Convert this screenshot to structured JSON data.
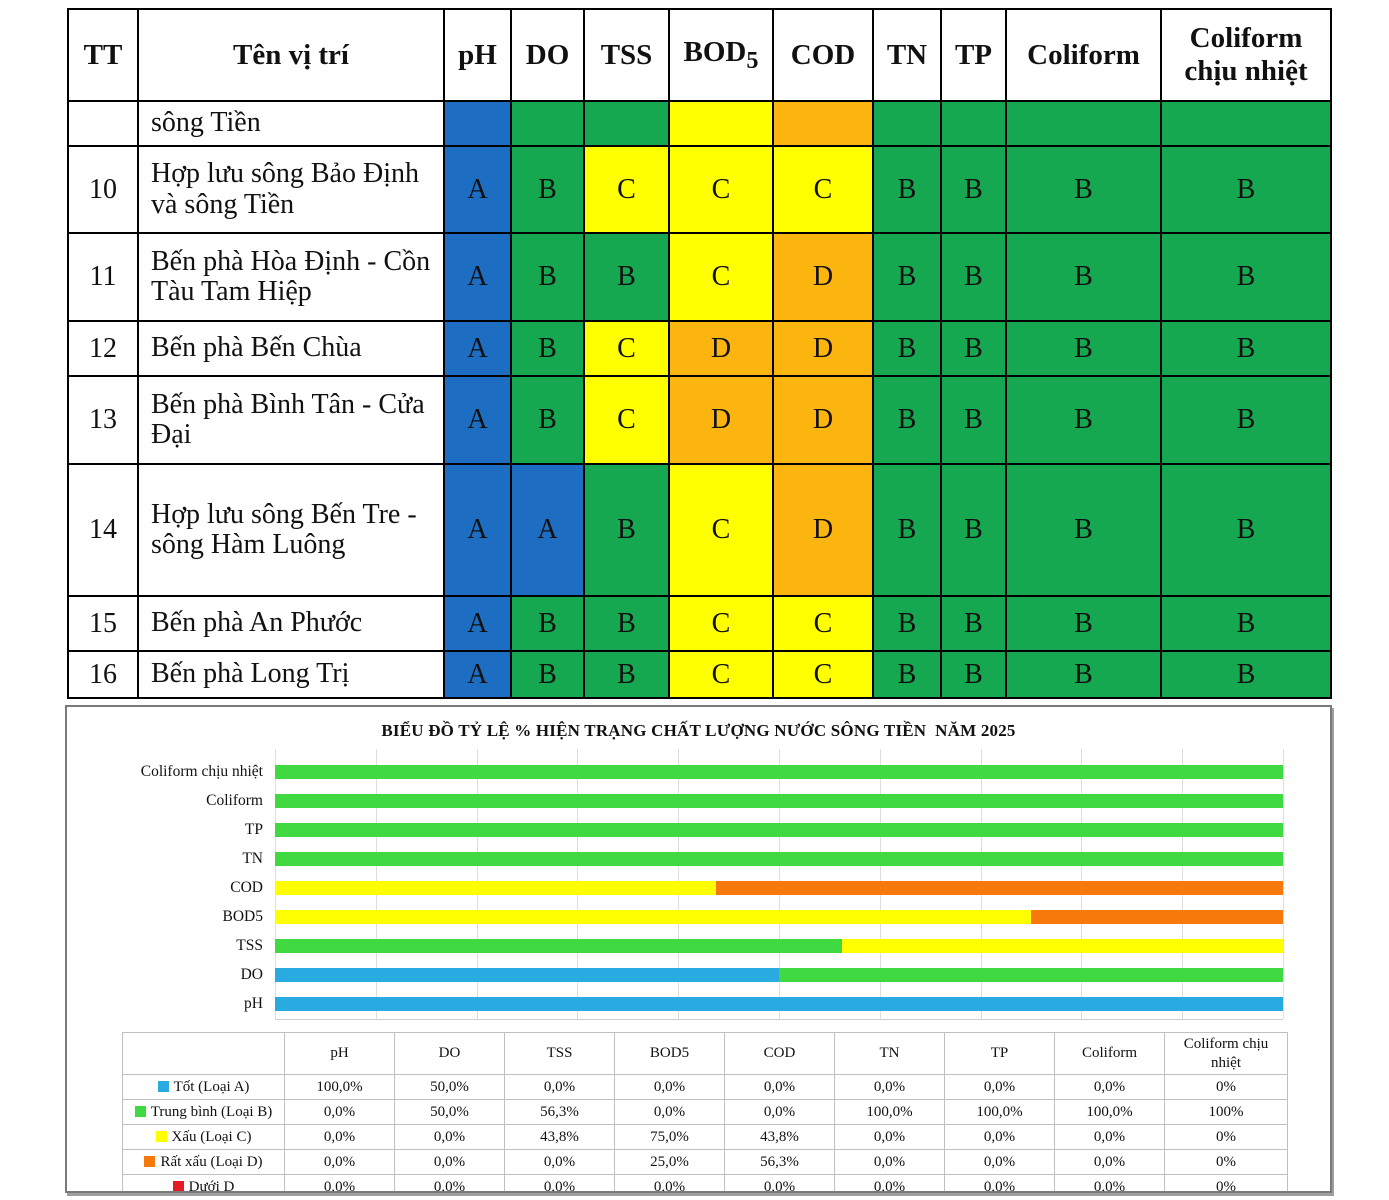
{
  "colors": {
    "table_grades": {
      "A": "#1d6ec2",
      "B": "#16a751",
      "C": "#ffff00",
      "D": "#fcb40e"
    },
    "grid_line": "#dedede",
    "figure_border": "#7a7a7a"
  },
  "table": {
    "headers": [
      {
        "key": "tt",
        "label": "TT",
        "sub": ""
      },
      {
        "key": "location",
        "label": "Tên vị trí",
        "sub": ""
      },
      {
        "key": "ph",
        "label": "pH",
        "sub": ""
      },
      {
        "key": "do",
        "label": "DO",
        "sub": ""
      },
      {
        "key": "tss",
        "label": "TSS",
        "sub": ""
      },
      {
        "key": "bod5",
        "label": "BOD",
        "sub": "5"
      },
      {
        "key": "cod",
        "label": "COD",
        "sub": ""
      },
      {
        "key": "tn",
        "label": "TN",
        "sub": ""
      },
      {
        "key": "tp",
        "label": "TP",
        "sub": ""
      },
      {
        "key": "coliform",
        "label": "Coliform",
        "sub": ""
      },
      {
        "key": "coliform-chiu-nhiet",
        "label": "Coliform chịu nhiệt",
        "sub": ""
      }
    ],
    "rows": [
      {
        "tt": "",
        "name": "sông Tiền",
        "show_letters": false,
        "grades": [
          "A",
          "B",
          "B",
          "C",
          "D",
          "B",
          "B",
          "B",
          "B"
        ]
      },
      {
        "tt": "10",
        "name": "Hợp lưu sông Bảo Định và sông Tiền",
        "show_letters": true,
        "grades": [
          "A",
          "B",
          "C",
          "C",
          "C",
          "B",
          "B",
          "B",
          "B"
        ]
      },
      {
        "tt": "11",
        "name": "Bến phà Hòa Định - Cồn Tàu Tam Hiệp",
        "show_letters": true,
        "grades": [
          "A",
          "B",
          "B",
          "C",
          "D",
          "B",
          "B",
          "B",
          "B"
        ]
      },
      {
        "tt": "12",
        "name": "Bến phà Bến Chùa",
        "show_letters": true,
        "grades": [
          "A",
          "B",
          "C",
          "D",
          "D",
          "B",
          "B",
          "B",
          "B"
        ]
      },
      {
        "tt": "13",
        "name": "Bến phà Bình Tân - Cửa Đại",
        "show_letters": true,
        "grades": [
          "A",
          "B",
          "C",
          "D",
          "D",
          "B",
          "B",
          "B",
          "B"
        ]
      },
      {
        "tt": "14",
        "name": "Hợp lưu sông Bến Tre - sông Hàm Luông",
        "show_letters": true,
        "grades": [
          "A",
          "A",
          "B",
          "C",
          "D",
          "B",
          "B",
          "B",
          "B"
        ]
      },
      {
        "tt": "15",
        "name": "Bến phà An Phước",
        "show_letters": true,
        "grades": [
          "A",
          "B",
          "B",
          "C",
          "C",
          "B",
          "B",
          "B",
          "B"
        ]
      },
      {
        "tt": "16",
        "name": "Bến phà Long Trị",
        "show_letters": true,
        "grades": [
          "A",
          "B",
          "B",
          "C",
          "C",
          "B",
          "B",
          "B",
          "B"
        ]
      }
    ]
  },
  "chart": {
    "title": "BIỂU ĐỒ TỶ LỆ % HIỆN TRẠNG CHẤT LƯỢNG NƯỚC SÔNG TIỀN  NĂM 2025"
  },
  "chart_data": [
    {
      "type": "table",
      "title": "Water quality classification by monitoring site (grades A best … D worst)",
      "columns": [
        "TT",
        "Tên vị trí",
        "pH",
        "DO",
        "TSS",
        "BOD5",
        "COD",
        "TN",
        "TP",
        "Coliform",
        "Coliform chịu nhiệt"
      ],
      "rows": [
        [
          "",
          "sông Tiền",
          "A",
          "B",
          "B",
          "C",
          "D",
          "B",
          "B",
          "B",
          "B"
        ],
        [
          "10",
          "Hợp lưu sông Bảo Định và sông Tiền",
          "A",
          "B",
          "C",
          "C",
          "C",
          "B",
          "B",
          "B",
          "B"
        ],
        [
          "11",
          "Bến phà Hòa Định - Cồn Tàu Tam Hiệp",
          "A",
          "B",
          "B",
          "C",
          "D",
          "B",
          "B",
          "B",
          "B"
        ],
        [
          "12",
          "Bến phà Bến Chùa",
          "A",
          "B",
          "C",
          "D",
          "D",
          "B",
          "B",
          "B",
          "B"
        ],
        [
          "13",
          "Bến phà Bình Tân - Cửa Đại",
          "A",
          "B",
          "C",
          "D",
          "D",
          "B",
          "B",
          "B",
          "B"
        ],
        [
          "14",
          "Hợp lưu sông Bến Tre - sông Hàm Luông",
          "A",
          "A",
          "B",
          "C",
          "D",
          "B",
          "B",
          "B",
          "B"
        ],
        [
          "15",
          "Bến phà An Phước",
          "A",
          "B",
          "B",
          "C",
          "C",
          "B",
          "B",
          "B",
          "B"
        ],
        [
          "16",
          "Bến phà Long Trị",
          "A",
          "B",
          "B",
          "C",
          "C",
          "B",
          "B",
          "B",
          "B"
        ]
      ]
    },
    {
      "type": "bar",
      "orientation": "horizontal",
      "stacked": true,
      "title": "BIỂU ĐỒ TỶ LỆ % HIỆN TRẠNG CHẤT LƯỢNG NƯỚC SÔNG TIỀN  NĂM 2025",
      "categories": [
        "pH",
        "DO",
        "TSS",
        "BOD5",
        "COD",
        "TN",
        "TP",
        "Coliform",
        "Coliform chịu nhiệt"
      ],
      "series": [
        {
          "name": "Tốt (Loại A)",
          "color": "#29abe2",
          "values": [
            100,
            50,
            0,
            0,
            0,
            0,
            0,
            0,
            0
          ]
        },
        {
          "name": "Trung bình (Loại B)",
          "color": "#41d941",
          "values": [
            0,
            50,
            56.3,
            0,
            0,
            100,
            100,
            100,
            100
          ]
        },
        {
          "name": "Xấu (Loại C)",
          "color": "#ffff00",
          "values": [
            0,
            0,
            43.8,
            75,
            43.8,
            0,
            0,
            0,
            0
          ]
        },
        {
          "name": "Rất xấu (Loại D)",
          "color": "#f8790b",
          "values": [
            0,
            0,
            0,
            25,
            56.3,
            0,
            0,
            0,
            0
          ]
        },
        {
          "name": "Dưới D",
          "color": "#e51c23",
          "values": [
            0,
            0,
            0,
            0,
            0,
            0,
            0,
            0,
            0
          ]
        }
      ],
      "xlim": [
        0,
        100
      ],
      "grid": true,
      "gridline_step_percent": 10,
      "legend_position": "bottom-table"
    }
  ],
  "legend_table": {
    "columns": [
      "pH",
      "DO",
      "TSS",
      "BOD5",
      "COD",
      "TN",
      "TP",
      "Coliform",
      "Coliform chịu nhiệt"
    ],
    "rows": [
      {
        "label": "Tốt (Loại A)",
        "swatch": "#29abe2",
        "cells": [
          "100,0%",
          "50,0%",
          "0,0%",
          "0,0%",
          "0,0%",
          "0,0%",
          "0,0%",
          "0,0%",
          "0%"
        ]
      },
      {
        "label": "Trung bình (Loại B)",
        "swatch": "#41d941",
        "cells": [
          "0,0%",
          "50,0%",
          "56,3%",
          "0,0%",
          "0,0%",
          "100,0%",
          "100,0%",
          "100,0%",
          "100%"
        ]
      },
      {
        "label": "Xấu (Loại C)",
        "swatch": "#ffff00",
        "cells": [
          "0,0%",
          "0,0%",
          "43,8%",
          "75,0%",
          "43,8%",
          "0,0%",
          "0,0%",
          "0,0%",
          "0%"
        ]
      },
      {
        "label": "Rất xấu (Loại D)",
        "swatch": "#f8790b",
        "cells": [
          "0,0%",
          "0,0%",
          "0,0%",
          "25,0%",
          "56,3%",
          "0,0%",
          "0,0%",
          "0,0%",
          "0%"
        ]
      },
      {
        "label": "Dưới D",
        "swatch": "#e51c23",
        "cells": [
          "0,0%",
          "0,0%",
          "0,0%",
          "0,0%",
          "0,0%",
          "0,0%",
          "0,0%",
          "0,0%",
          "0%"
        ]
      }
    ]
  }
}
